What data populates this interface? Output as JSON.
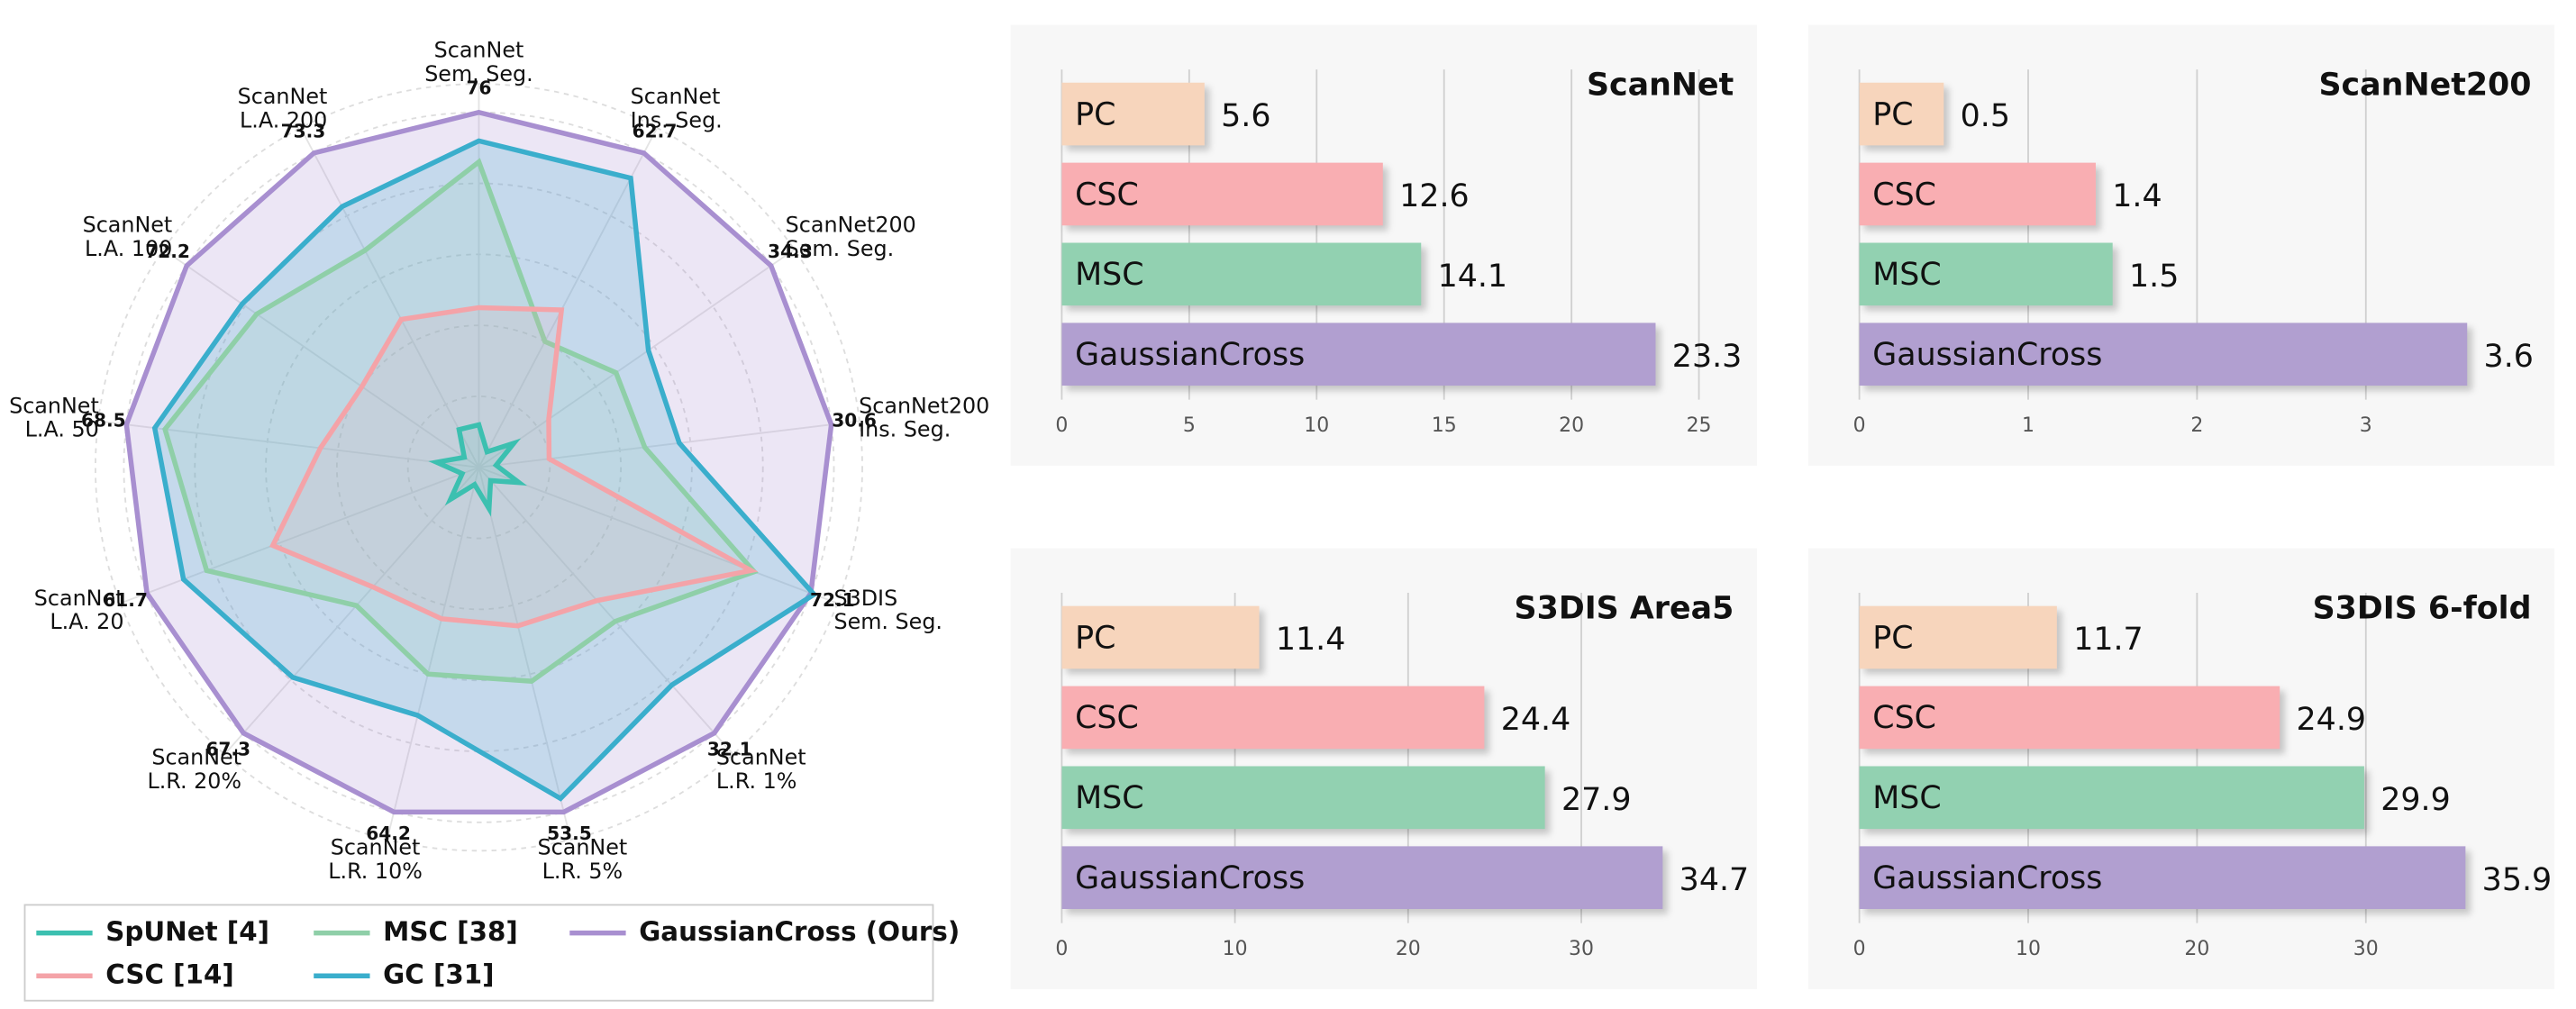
{
  "chart_data": [
    {
      "type": "radar",
      "axes": [
        "ScanNet\nSem. Seg.",
        "ScanNet\nIns. Seg.",
        "ScanNet200\nSem. Seg.",
        "ScanNet200\nIns. Seg.",
        "S3DIS\nSem. Seg.",
        "ScanNet\nL.R. 1%",
        "ScanNet\nL.R. 5%",
        "ScanNet\nL.R. 10%",
        "ScanNet\nL.R. 20%",
        "ScanNet\nL.A. 20",
        "ScanNet\nL.A. 50",
        "ScanNet\nL.A. 100",
        "ScanNet\nL.A. 200"
      ],
      "series": [
        {
          "name": "SpUNet [4]",
          "color": "#3cc0b0",
          "values": [
            9.1,
            3.1,
            4.1,
            1.5,
            8.7,
            1.6,
            6.4,
            3.2,
            8.1,
            3.1,
            8.2,
            3.6,
            8.8
          ]
        },
        {
          "name": "CSC [14]",
          "color": "#f4a3a8",
          "values": [
            34.2,
            31.4,
            8.2,
            6.1,
            59.1,
            16.1,
            24.6,
            28.2,
            30.3,
            38.3,
            30.8,
            28.9,
            34.5
          ]
        },
        {
          "name": "MSC [38]",
          "color": "#8fcfa8",
          "values": [
            65.4,
            25.1,
            16.1,
            14.4,
            59.8,
            18.6,
            33.2,
            38.5,
            35.0,
            50.6,
            61.0,
            54.9,
            50.6
          ]
        },
        {
          "name": "GC [31]",
          "color": "#3aaecc",
          "values": [
            69.9,
            57.7,
            19.9,
            17.4,
            72.8,
            26.3,
            51.4,
            46.2,
            53.2,
            54.9,
            63.0,
            58.5,
            60.8
          ]
        },
        {
          "name": "GaussianCross (Ours)",
          "color": "#a88fd0",
          "values": [
            76.0,
            62.7,
            34.3,
            30.6,
            72.1,
            32.1,
            53.5,
            64.2,
            67.3,
            61.7,
            68.5,
            72.2,
            73.3
          ]
        }
      ]
    },
    {
      "type": "hbar",
      "title": "ScanNet",
      "categories": [
        "PC",
        "CSC",
        "MSC",
        "GaussianCross"
      ],
      "values": [
        5.6,
        12.6,
        14.1,
        23.3
      ],
      "colors": [
        "#f7d5bc",
        "#f9aeb2",
        "#92d1b1",
        "#b19fd0"
      ],
      "xlim": [
        0,
        26.5
      ],
      "xticks": [
        0,
        5,
        10,
        15,
        20,
        25
      ],
      "grid": true
    },
    {
      "type": "hbar",
      "title": "ScanNet200",
      "categories": [
        "PC",
        "CSC",
        "MSC",
        "GaussianCross"
      ],
      "values": [
        0.5,
        1.4,
        1.5,
        3.6
      ],
      "colors": [
        "#f7d5bc",
        "#f9aeb2",
        "#92d1b1",
        "#b19fd0"
      ],
      "xlim": [
        0,
        4
      ],
      "xticks": [
        0,
        1,
        2,
        3
      ],
      "grid": true
    },
    {
      "type": "hbar",
      "title": "S3DIS Area5",
      "categories": [
        "PC",
        "CSC",
        "MSC",
        "GaussianCross"
      ],
      "values": [
        11.4,
        24.4,
        27.9,
        34.7
      ],
      "colors": [
        "#f7d5bc",
        "#f9aeb2",
        "#92d1b1",
        "#b19fd0"
      ],
      "xlim": [
        0,
        39
      ],
      "xticks": [
        0,
        10,
        20,
        30
      ],
      "grid": true
    },
    {
      "type": "hbar",
      "title": "S3DIS 6-fold",
      "categories": [
        "PC",
        "CSC",
        "MSC",
        "GaussianCross"
      ],
      "values": [
        11.7,
        24.9,
        29.9,
        35.9
      ],
      "colors": [
        "#f7d5bc",
        "#f9aeb2",
        "#92d1b1",
        "#b19fd0"
      ],
      "xlim": [
        0,
        40
      ],
      "xticks": [
        0,
        10,
        20,
        30
      ],
      "grid": true
    }
  ]
}
